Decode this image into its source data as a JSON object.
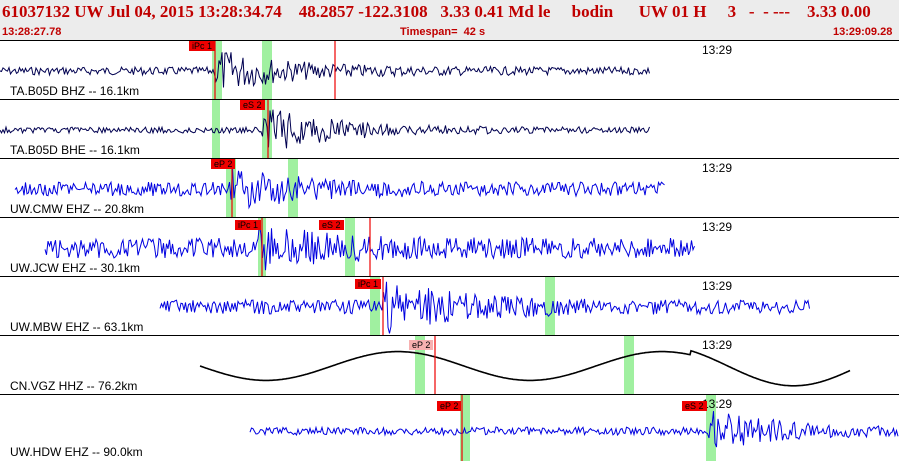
{
  "header": {
    "title": "61037132 UW Jul 04, 2015 13:28:34.74    48.2857 -122.3108   3.33 0.41 Md le     bodin      UW 01 H     3   -  - ---    3.33 0.00",
    "start_time": "13:28:27.78",
    "timespan": "Timespan=  42 s",
    "end_time": "13:29:09.28"
  },
  "colors": {
    "header_text": "#c00000",
    "trace_blue": "#0000e0",
    "trace_navy": "#000050",
    "trace_black": "#000000",
    "pick_red": "#ee0000",
    "pick_pink": "#f7b0b0",
    "window_green": "#a0f0a0"
  },
  "panels": [
    {
      "label": "TA.B05D BHZ -- 16.1km",
      "time_label": "13:29",
      "picks": [
        "iPc 1"
      ],
      "color": "trace_navy"
    },
    {
      "label": "TA.B05D BHE -- 16.1km",
      "time_label": "",
      "picks": [
        "eS 2"
      ],
      "color": "trace_navy"
    },
    {
      "label": "UW.CMW EHZ -- 20.8km",
      "time_label": "13:29",
      "picks": [
        "eP 2"
      ],
      "color": "trace_blue"
    },
    {
      "label": "UW.JCW EHZ -- 30.1km",
      "time_label": "13:29",
      "picks": [
        "iPc 1",
        "eS 2"
      ],
      "color": "trace_blue"
    },
    {
      "label": "UW.MBW EHZ -- 63.1km",
      "time_label": "13:29",
      "picks": [
        "iPc 1"
      ],
      "color": "trace_blue"
    },
    {
      "label": "CN.VGZ HHZ -- 76.2km",
      "time_label": "13:29",
      "picks": [
        "eP 2"
      ],
      "color": "trace_black"
    },
    {
      "label": "UW.HDW EHZ -- 90.0km",
      "time_label": "13:29",
      "picks": [
        "eP 2",
        "eS 2"
      ],
      "color": "trace_blue"
    }
  ]
}
